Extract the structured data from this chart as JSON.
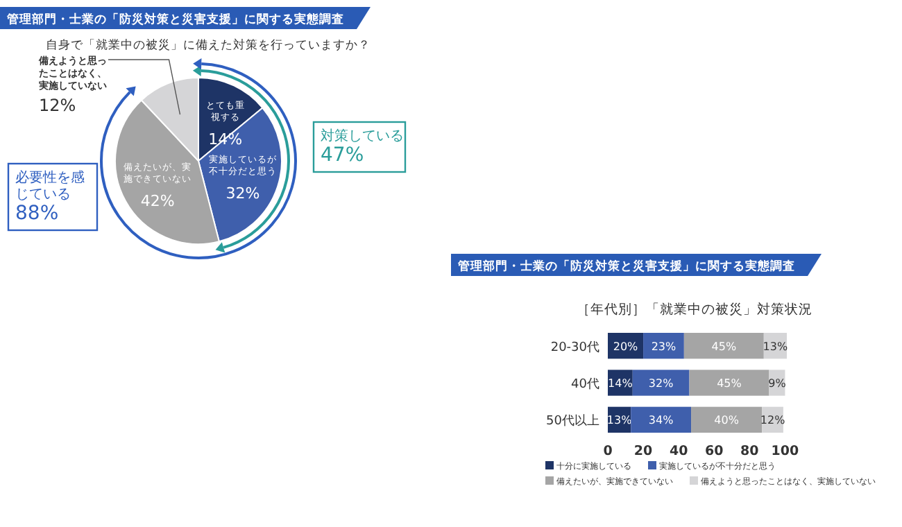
{
  "chart_data": [
    {
      "type": "pie",
      "title": "管理部門・士業の「防災対策と災害支援」に関する実態調査",
      "subtitle": "自身で「就業中の被災」に備えた対策を行っていますか？",
      "categories": [
        "とても重視する",
        "実施しているが不十分だと思う",
        "備えたいが、実施できていない",
        "備えようと思ったことはなく、実施していない"
      ],
      "values": [
        14,
        32,
        42,
        12
      ],
      "value_labels": [
        "14%",
        "32%",
        "42%",
        "12%"
      ],
      "colors": [
        "#1e3466",
        "#3f5fac",
        "#a5a5a5",
        "#d5d5d7"
      ],
      "annotations": [
        "対策している\n47%",
        "必要性を感じている\n88%"
      ]
    },
    {
      "type": "bar",
      "orientation": "horizontal",
      "stacked": true,
      "title": "管理部門・士業の「防災対策と災害支援」に関する実態調査",
      "subtitle": "［年代別］「就業中の被災」対策状況",
      "categories": [
        "20-30代",
        "40代",
        "50代以上"
      ],
      "series": [
        {
          "name": "十分に実施している",
          "color": "#1e3466",
          "values": [
            20,
            14,
            13
          ],
          "value_labels": [
            "20%",
            "14%",
            "13%"
          ]
        },
        {
          "name": "実施しているが不十分だと思う",
          "color": "#3f5fac",
          "values": [
            23,
            32,
            34
          ],
          "value_labels": [
            "23%",
            "32%",
            "34%"
          ]
        },
        {
          "name": "備えたいが、実施できていない",
          "color": "#a5a5a5",
          "values": [
            45,
            45,
            40
          ],
          "value_labels": [
            "45%",
            "45%",
            "40%"
          ]
        },
        {
          "name": "備えようと思ったことはなく、実施していない",
          "color": "#d5d5d7",
          "values": [
            13,
            9,
            12
          ],
          "value_labels": [
            "13%",
            "9%",
            "12%"
          ]
        }
      ],
      "xlim": [
        0,
        101
      ],
      "xticks": [
        0,
        20,
        40,
        60,
        80,
        100
      ],
      "legend": "bottom"
    }
  ]
}
